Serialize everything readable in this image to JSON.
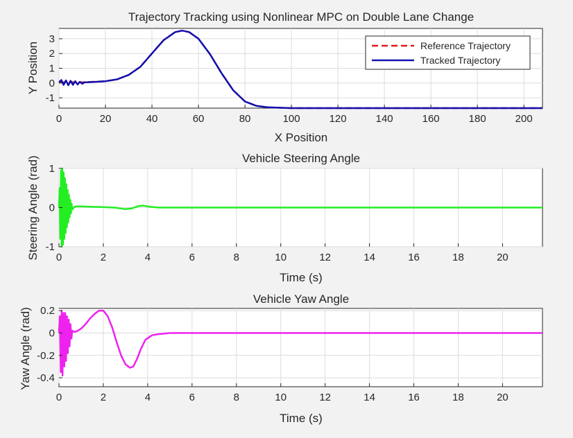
{
  "chart_data": [
    {
      "type": "line",
      "title": "Trajectory Tracking using Nonlinear MPC on Double Lane Change",
      "xlabel": "X Position",
      "ylabel": "Y Position",
      "xlim": [
        0,
        208
      ],
      "ylim": [
        -1.7,
        3.7
      ],
      "xticks": [
        0,
        20,
        40,
        60,
        80,
        100,
        120,
        140,
        160,
        180,
        200
      ],
      "yticks": [
        -1,
        0,
        1,
        2,
        3
      ],
      "grid": true,
      "legend_position": "top-right",
      "series": [
        {
          "name": "Reference Trajectory",
          "color": "#e41a1c",
          "style": "dashed",
          "x": [
            0,
            10,
            20,
            25,
            30,
            35,
            40,
            45,
            50,
            53,
            56,
            60,
            65,
            70,
            75,
            80,
            85,
            90,
            100,
            120,
            150,
            180,
            208
          ],
          "y": [
            0.05,
            0.05,
            0.12,
            0.25,
            0.55,
            1.1,
            2.0,
            2.9,
            3.45,
            3.55,
            3.45,
            3.0,
            1.95,
            0.65,
            -0.5,
            -1.25,
            -1.55,
            -1.65,
            -1.7,
            -1.7,
            -1.7,
            -1.7,
            -1.7
          ]
        },
        {
          "name": "Tracked Trajectory",
          "color": "#1010b0",
          "style": "solid",
          "x": [
            0,
            1,
            2,
            3,
            4,
            5,
            6,
            7,
            8,
            9,
            10,
            11,
            12,
            15,
            20,
            25,
            30,
            35,
            40,
            45,
            50,
            53,
            56,
            60,
            65,
            70,
            75,
            80,
            85,
            90,
            100,
            120,
            150,
            180,
            208
          ],
          "y": [
            0.05,
            0.2,
            -0.12,
            0.18,
            -0.15,
            0.15,
            -0.12,
            0.12,
            -0.1,
            0.08,
            -0.05,
            0.05,
            0.05,
            0.07,
            0.12,
            0.25,
            0.55,
            1.1,
            2.0,
            2.9,
            3.45,
            3.55,
            3.45,
            3.0,
            1.95,
            0.65,
            -0.5,
            -1.25,
            -1.55,
            -1.65,
            -1.7,
            -1.7,
            -1.7,
            -1.7,
            -1.7
          ]
        }
      ]
    },
    {
      "type": "line",
      "title": "Vehicle Steering Angle",
      "xlabel": "Time (s)",
      "ylabel": "Steering Angle (rad)",
      "xlim": [
        0,
        21.8
      ],
      "ylim": [
        -1,
        1
      ],
      "xticks": [
        0,
        2,
        4,
        6,
        8,
        10,
        12,
        14,
        16,
        18,
        20
      ],
      "yticks": [
        -1,
        0,
        1
      ],
      "grid": true,
      "series": [
        {
          "name": "Steering Angle",
          "color": "#22ee22",
          "style": "solid",
          "x": [
            0,
            0.03,
            0.06,
            0.09,
            0.12,
            0.15,
            0.18,
            0.21,
            0.24,
            0.27,
            0.3,
            0.33,
            0.36,
            0.39,
            0.42,
            0.45,
            0.48,
            0.51,
            0.54,
            0.57,
            0.6,
            0.7,
            0.8,
            1.0,
            1.5,
            2.0,
            2.5,
            3.0,
            3.3,
            3.6,
            3.8,
            4.1,
            4.5,
            5.0,
            10,
            15,
            21.8
          ],
          "y": [
            0,
            0.5,
            -0.8,
            0.95,
            -1.0,
            1.0,
            -0.95,
            0.9,
            -0.8,
            0.75,
            -0.65,
            0.6,
            -0.5,
            0.45,
            -0.38,
            0.33,
            -0.25,
            0.2,
            -0.15,
            0.1,
            -0.05,
            0.02,
            0.03,
            0.03,
            0.02,
            0.01,
            0.0,
            -0.04,
            -0.02,
            0.04,
            0.05,
            0.02,
            0.0,
            0.0,
            0.0,
            0.0,
            0.0
          ]
        }
      ]
    },
    {
      "type": "line",
      "title": "Vehicle Yaw Angle",
      "xlabel": "Time (s)",
      "ylabel": "Yaw Angle (rad)",
      "xlim": [
        0,
        21.8
      ],
      "ylim": [
        -0.48,
        0.22
      ],
      "xticks": [
        0,
        2,
        4,
        6,
        8,
        10,
        12,
        14,
        16,
        18,
        20
      ],
      "yticks": [
        -0.4,
        -0.2,
        0,
        0.2
      ],
      "grid": true,
      "series": [
        {
          "name": "Yaw Angle",
          "color": "#ee22ee",
          "style": "solid",
          "x": [
            0,
            0.04,
            0.08,
            0.12,
            0.16,
            0.2,
            0.24,
            0.28,
            0.32,
            0.36,
            0.4,
            0.44,
            0.48,
            0.52,
            0.56,
            0.6,
            0.7,
            0.85,
            1.0,
            1.2,
            1.4,
            1.6,
            1.8,
            2.0,
            2.2,
            2.4,
            2.6,
            2.8,
            3.0,
            3.2,
            3.35,
            3.5,
            3.7,
            3.9,
            4.2,
            4.5,
            5.0,
            6.0,
            10,
            15,
            21.8
          ],
          "y": [
            0,
            0.15,
            -0.35,
            0.2,
            -0.38,
            0.18,
            -0.3,
            0.18,
            -0.25,
            0.15,
            -0.18,
            0.12,
            -0.12,
            0.08,
            -0.05,
            0.02,
            0.01,
            0.02,
            0.04,
            0.08,
            0.13,
            0.17,
            0.2,
            0.2,
            0.15,
            0.05,
            -0.08,
            -0.2,
            -0.28,
            -0.31,
            -0.3,
            -0.24,
            -0.14,
            -0.06,
            -0.02,
            -0.01,
            0.0,
            0.0,
            0.0,
            0.0,
            0.0
          ]
        }
      ]
    }
  ]
}
